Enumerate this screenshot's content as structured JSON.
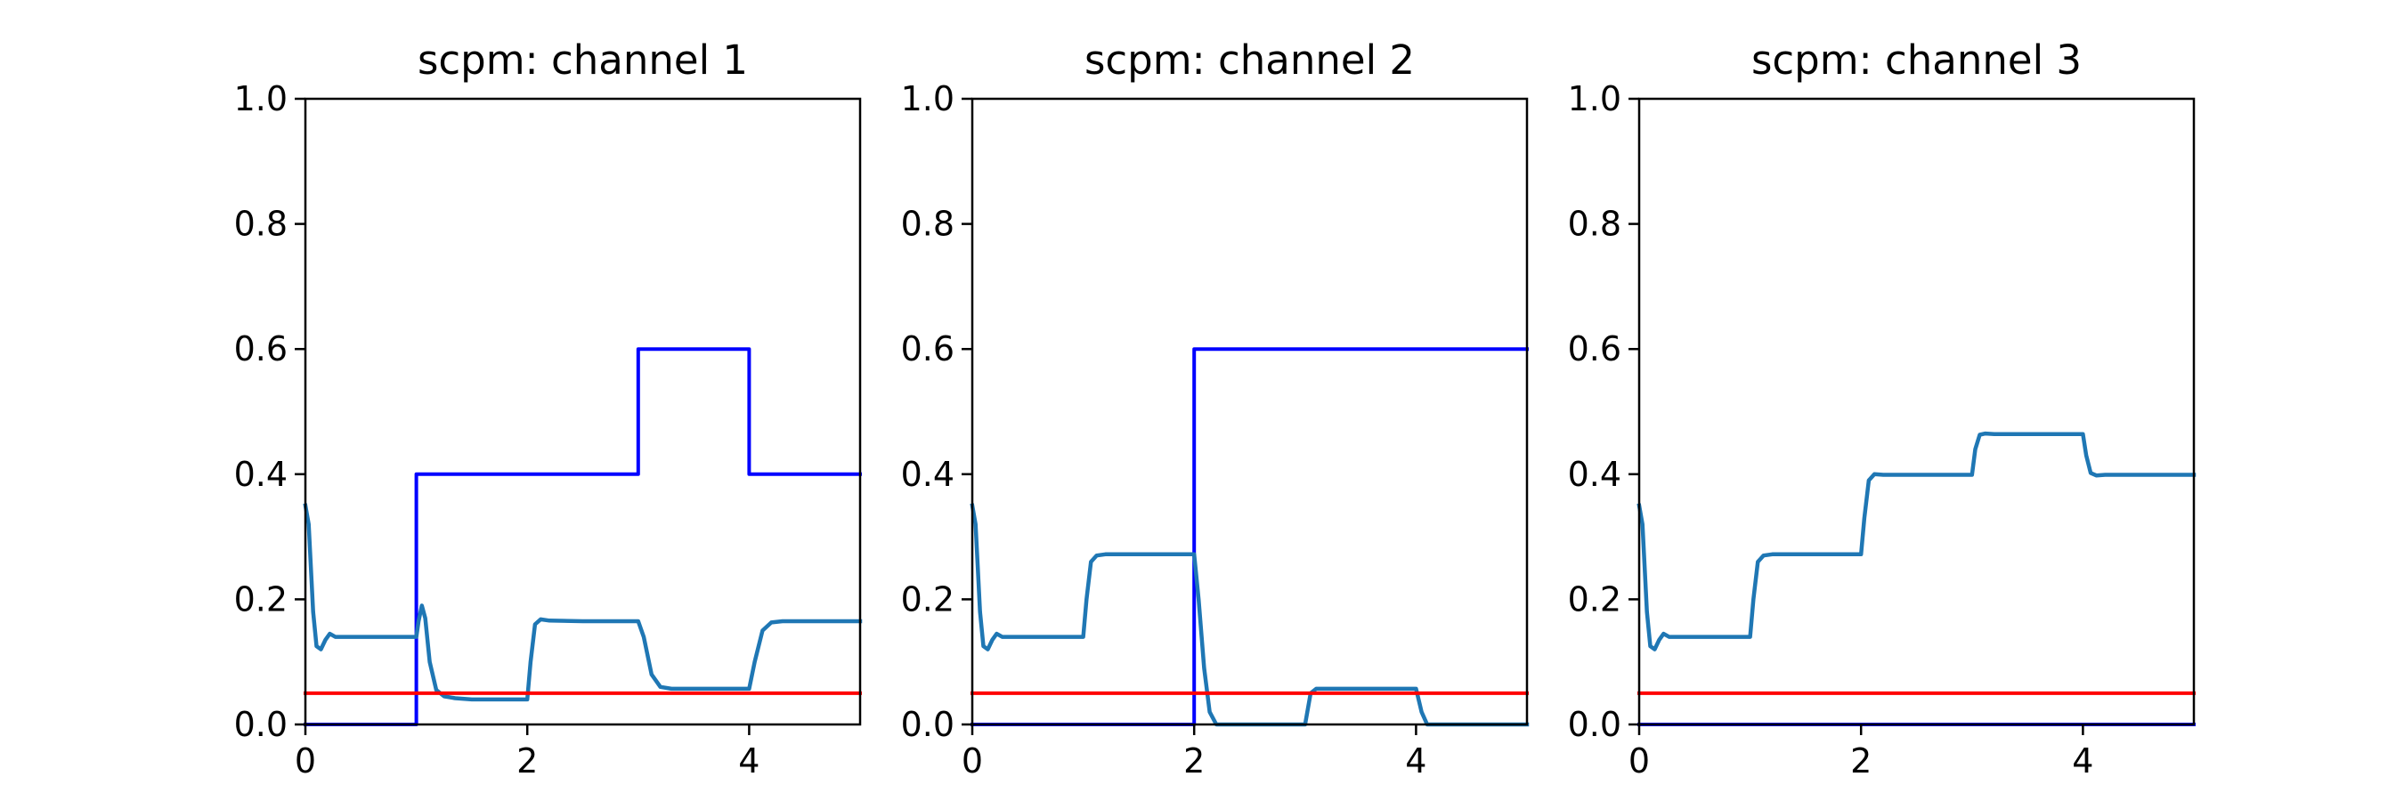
{
  "chart_data": [
    {
      "type": "line",
      "title": "scpm: channel 1",
      "xlim": [
        0,
        5
      ],
      "ylim": [
        0,
        1
      ],
      "xticks": [
        {
          "value": 0,
          "label": "0"
        },
        {
          "value": 2,
          "label": "2"
        },
        {
          "value": 4,
          "label": "4"
        }
      ],
      "yticks": [
        {
          "value": 0,
          "label": "0.0"
        },
        {
          "value": 0.2,
          "label": "0.2"
        },
        {
          "value": 0.4,
          "label": "0.4"
        },
        {
          "value": 0.6,
          "label": "0.6"
        },
        {
          "value": 0.8,
          "label": "0.8"
        },
        {
          "value": 1,
          "label": "1.0"
        }
      ],
      "grid": false,
      "series": [
        {
          "color": "#0000ff",
          "kind": "step",
          "x": [
            0,
            1,
            1,
            3,
            3,
            4,
            4,
            5
          ],
          "y": [
            0,
            0,
            0.4,
            0.4,
            0.6,
            0.6,
            0.4,
            0.4
          ]
        },
        {
          "color": "#1f77b4",
          "kind": "smooth",
          "x": [
            0,
            0.03,
            0.07,
            0.1,
            0.14,
            0.18,
            0.22,
            0.27,
            0.3,
            0.5,
            1.0,
            1.02,
            1.05,
            1.08,
            1.12,
            1.18,
            1.25,
            1.35,
            1.5,
            2.0,
            2.03,
            2.07,
            2.12,
            2.2,
            2.5,
            3.0,
            3.05,
            3.12,
            3.2,
            3.3,
            3.5,
            4.0,
            4.05,
            4.12,
            4.2,
            4.3,
            4.5,
            5.0
          ],
          "y": [
            0.35,
            0.32,
            0.18,
            0.125,
            0.12,
            0.135,
            0.145,
            0.14,
            0.14,
            0.14,
            0.14,
            0.165,
            0.19,
            0.17,
            0.1,
            0.055,
            0.045,
            0.042,
            0.04,
            0.04,
            0.1,
            0.16,
            0.168,
            0.166,
            0.165,
            0.165,
            0.14,
            0.08,
            0.06,
            0.057,
            0.057,
            0.057,
            0.1,
            0.15,
            0.163,
            0.165,
            0.165,
            0.165
          ]
        },
        {
          "color": "#ff0000",
          "kind": "line",
          "x": [
            0,
            5
          ],
          "y": [
            0.05,
            0.05
          ]
        }
      ]
    },
    {
      "type": "line",
      "title": "scpm: channel 2",
      "xlim": [
        0,
        5
      ],
      "ylim": [
        0,
        1
      ],
      "xticks": [
        {
          "value": 0,
          "label": "0"
        },
        {
          "value": 2,
          "label": "2"
        },
        {
          "value": 4,
          "label": "4"
        }
      ],
      "yticks": [
        {
          "value": 0,
          "label": "0.0"
        },
        {
          "value": 0.2,
          "label": "0.2"
        },
        {
          "value": 0.4,
          "label": "0.4"
        },
        {
          "value": 0.6,
          "label": "0.6"
        },
        {
          "value": 0.8,
          "label": "0.8"
        },
        {
          "value": 1,
          "label": "1.0"
        }
      ],
      "grid": false,
      "series": [
        {
          "color": "#0000ff",
          "kind": "step",
          "x": [
            0,
            2,
            2,
            5
          ],
          "y": [
            0,
            0,
            0.6,
            0.6
          ]
        },
        {
          "color": "#1f77b4",
          "kind": "smooth",
          "x": [
            0,
            0.03,
            0.07,
            0.1,
            0.14,
            0.18,
            0.22,
            0.27,
            0.3,
            0.5,
            1.0,
            1.03,
            1.07,
            1.12,
            1.2,
            1.5,
            2.0,
            2.04,
            2.09,
            2.14,
            2.2,
            2.5,
            3.0,
            3.05,
            3.1,
            3.5,
            4.0,
            4.05,
            4.1,
            5.0
          ],
          "y": [
            0.35,
            0.32,
            0.18,
            0.125,
            0.12,
            0.135,
            0.145,
            0.14,
            0.14,
            0.14,
            0.14,
            0.2,
            0.26,
            0.27,
            0.272,
            0.272,
            0.272,
            0.2,
            0.09,
            0.02,
            0.0,
            0.0,
            0.0,
            0.05,
            0.057,
            0.057,
            0.057,
            0.02,
            0.0,
            0.0
          ]
        },
        {
          "color": "#ff0000",
          "kind": "line",
          "x": [
            0,
            5
          ],
          "y": [
            0.05,
            0.05
          ]
        }
      ]
    },
    {
      "type": "line",
      "title": "scpm: channel 3",
      "xlim": [
        0,
        5
      ],
      "ylim": [
        0,
        1
      ],
      "xticks": [
        {
          "value": 0,
          "label": "0"
        },
        {
          "value": 2,
          "label": "2"
        },
        {
          "value": 4,
          "label": "4"
        }
      ],
      "yticks": [
        {
          "value": 0,
          "label": "0.0"
        },
        {
          "value": 0.2,
          "label": "0.2"
        },
        {
          "value": 0.4,
          "label": "0.4"
        },
        {
          "value": 0.6,
          "label": "0.6"
        },
        {
          "value": 0.8,
          "label": "0.8"
        },
        {
          "value": 1,
          "label": "1.0"
        }
      ],
      "grid": false,
      "series": [
        {
          "color": "#0000ff",
          "kind": "step",
          "x": [
            0,
            5
          ],
          "y": [
            0,
            0
          ]
        },
        {
          "color": "#1f77b4",
          "kind": "smooth",
          "x": [
            0,
            0.03,
            0.07,
            0.1,
            0.14,
            0.18,
            0.22,
            0.27,
            0.3,
            0.5,
            1.0,
            1.03,
            1.07,
            1.12,
            1.2,
            1.5,
            2.0,
            2.03,
            2.07,
            2.12,
            2.2,
            2.5,
            3.0,
            3.03,
            3.07,
            3.12,
            3.2,
            3.5,
            4.0,
            4.03,
            4.07,
            4.12,
            4.2,
            5.0
          ],
          "y": [
            0.35,
            0.32,
            0.18,
            0.125,
            0.12,
            0.135,
            0.145,
            0.14,
            0.14,
            0.14,
            0.14,
            0.2,
            0.26,
            0.27,
            0.272,
            0.272,
            0.272,
            0.33,
            0.39,
            0.4,
            0.399,
            0.399,
            0.399,
            0.44,
            0.463,
            0.465,
            0.464,
            0.464,
            0.464,
            0.43,
            0.402,
            0.398,
            0.399,
            0.399
          ]
        },
        {
          "color": "#ff0000",
          "kind": "line",
          "x": [
            0,
            5
          ],
          "y": [
            0.05,
            0.05
          ]
        }
      ]
    }
  ]
}
